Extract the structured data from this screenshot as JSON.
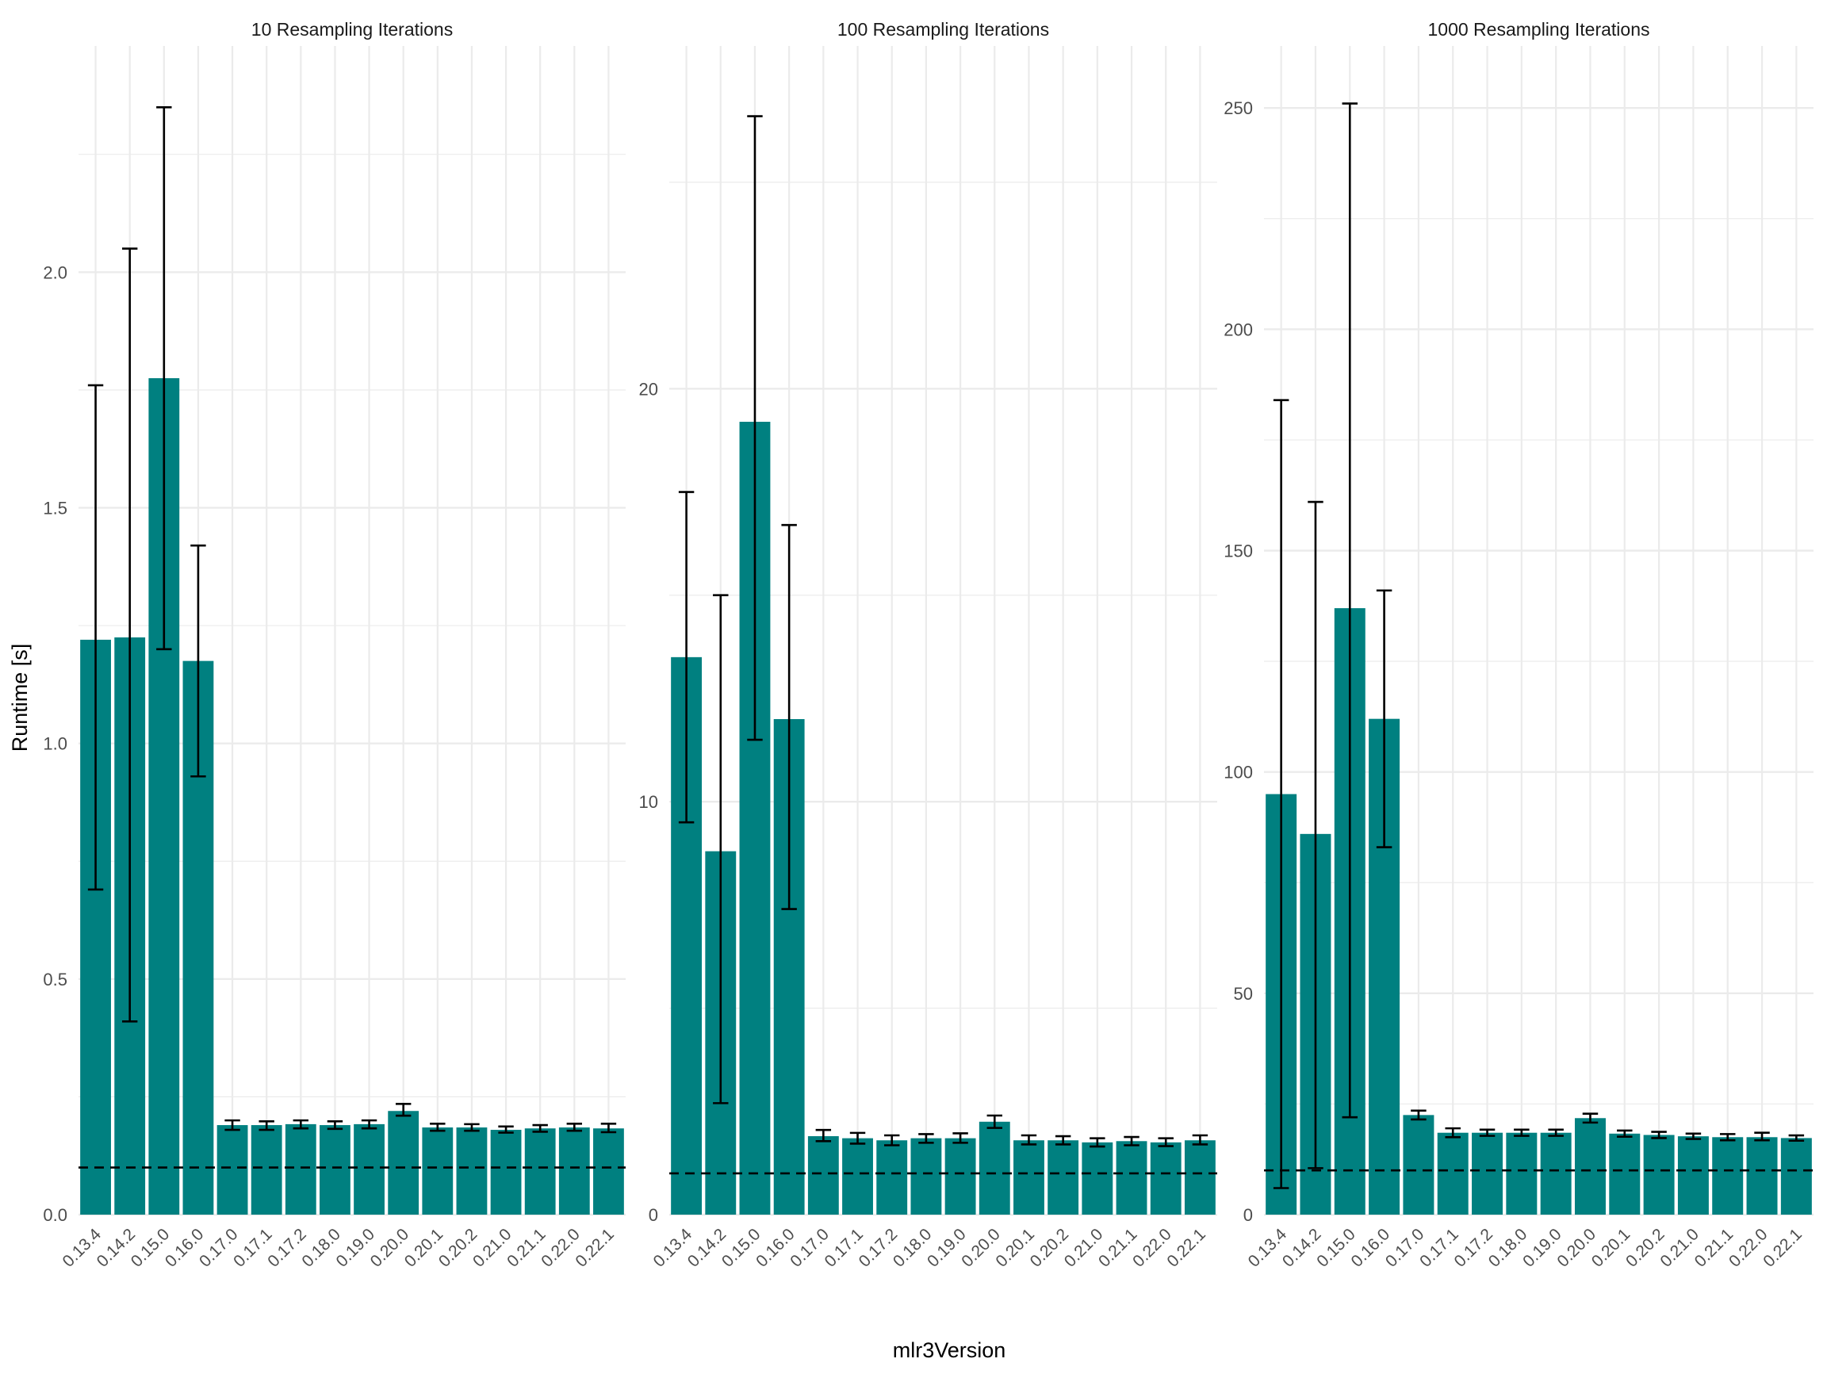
{
  "chart_data": {
    "type": "bar",
    "xlabel": "mlr3Version",
    "ylabel": "Runtime [s]",
    "categories": [
      "0.13.4",
      "0.14.2",
      "0.15.0",
      "0.16.0",
      "0.17.0",
      "0.17.1",
      "0.17.2",
      "0.18.0",
      "0.19.0",
      "0.20.0",
      "0.20.1",
      "0.20.2",
      "0.21.0",
      "0.21.1",
      "0.22.0",
      "0.22.1"
    ],
    "colors": {
      "bar": "#008080",
      "errorbar": "#000000",
      "grid": "#ebebeb",
      "text": "#4d4d4d",
      "reference_line": "#000000"
    },
    "panels": [
      {
        "title": "10 Resampling Iterations",
        "ylim": [
          0,
          2.48
        ],
        "yticks": [
          0.0,
          0.5,
          1.0,
          1.5,
          2.0
        ],
        "ytick_labels": [
          "0.0",
          "0.5",
          "1.0",
          "1.5",
          "2.0"
        ],
        "reference_line": 0.1,
        "values": [
          1.22,
          1.225,
          1.775,
          1.175,
          0.19,
          0.19,
          0.192,
          0.19,
          0.192,
          0.22,
          0.185,
          0.185,
          0.18,
          0.183,
          0.185,
          0.183
        ],
        "error_low": [
          0.69,
          0.41,
          1.2,
          0.93,
          0.18,
          0.18,
          0.183,
          0.182,
          0.183,
          0.21,
          0.178,
          0.178,
          0.174,
          0.176,
          0.178,
          0.175
        ],
        "error_high": [
          1.76,
          2.05,
          2.35,
          1.42,
          0.2,
          0.198,
          0.2,
          0.198,
          0.2,
          0.235,
          0.193,
          0.192,
          0.187,
          0.19,
          0.193,
          0.193
        ]
      },
      {
        "title": "100 Resampling Iterations",
        "ylim": [
          0,
          28.3
        ],
        "yticks": [
          0,
          10,
          20
        ],
        "ytick_labels": [
          "0",
          "10",
          "20"
        ],
        "reference_line": 1.0,
        "values": [
          13.5,
          8.8,
          19.2,
          12.0,
          1.9,
          1.85,
          1.8,
          1.85,
          1.85,
          2.25,
          1.8,
          1.8,
          1.75,
          1.78,
          1.75,
          1.8
        ],
        "error_low": [
          9.5,
          2.7,
          11.5,
          7.4,
          1.78,
          1.72,
          1.68,
          1.74,
          1.74,
          2.1,
          1.7,
          1.7,
          1.65,
          1.68,
          1.66,
          1.7
        ],
        "error_high": [
          17.5,
          15.0,
          26.6,
          16.7,
          2.05,
          1.98,
          1.92,
          1.95,
          1.97,
          2.4,
          1.92,
          1.9,
          1.85,
          1.88,
          1.85,
          1.92
        ]
      },
      {
        "title": "1000 Resampling Iterations",
        "ylim": [
          0,
          264
        ],
        "yticks": [
          0,
          50,
          100,
          150,
          200,
          250
        ],
        "ytick_labels": [
          "0",
          "50",
          "100",
          "150",
          "200",
          "250"
        ],
        "reference_line": 10,
        "values": [
          95,
          86,
          137,
          112,
          22.5,
          18.5,
          18.5,
          18.5,
          18.5,
          21.8,
          18.3,
          18,
          17.7,
          17.5,
          17.5,
          17.3
        ],
        "error_low": [
          6,
          10.5,
          22,
          83,
          21.5,
          17.5,
          17.8,
          17.8,
          17.8,
          20.8,
          17.6,
          17.3,
          17.1,
          16.8,
          16.8,
          16.7
        ],
        "error_high": [
          184,
          161,
          251,
          141,
          23.5,
          19.5,
          19.2,
          19.2,
          19.2,
          22.8,
          19,
          18.7,
          18.3,
          18.2,
          18.5,
          17.9
        ]
      }
    ]
  }
}
